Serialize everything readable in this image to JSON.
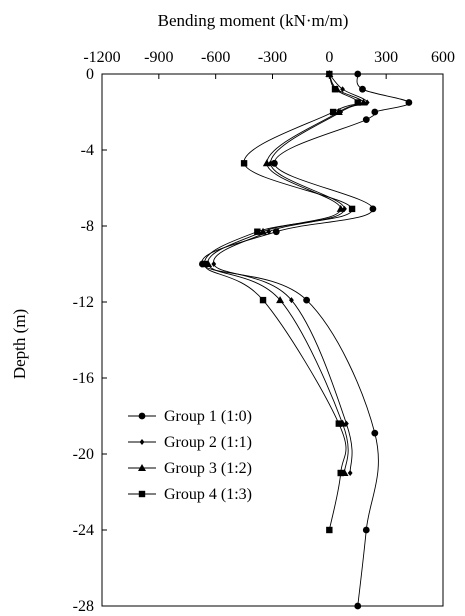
{
  "chart_data": {
    "type": "line",
    "title": "Bending moment (kN·m/m)",
    "xlabel": "Bending moment (kN·m/m)",
    "ylabel": "Depth (m)",
    "xlim": [
      -1200,
      600
    ],
    "ylim": [
      -28,
      0
    ],
    "x_ticks": [
      -1200,
      -900,
      -600,
      -300,
      0,
      300,
      600
    ],
    "y_ticks": [
      0,
      -4,
      -8,
      -12,
      -16,
      -20,
      -24,
      -28
    ],
    "x_tick_labels": [
      "-1200",
      "-900",
      "-600",
      "-300",
      "0",
      "300",
      "600"
    ],
    "y_tick_labels": [
      "0",
      "-4",
      "-8",
      "-12",
      "-16",
      "-20",
      "-24",
      "-28"
    ],
    "grid": false,
    "legend_position": "bottom-left",
    "series": [
      {
        "name": "Group 1 (1:0)",
        "marker": "circle",
        "x": [
          150,
          175,
          420,
          240,
          195,
          -290,
          230,
          -280,
          -670,
          -120,
          240,
          195,
          150
        ],
        "y": [
          0,
          -0.8,
          -1.5,
          -2,
          -2.4,
          -4.7,
          -7.1,
          -8.3,
          -10,
          -11.9,
          -18.9,
          -24,
          -28
        ]
      },
      {
        "name": "Group 2 (1:1)",
        "marker": "diamond",
        "x": [
          0,
          70,
          200,
          60,
          -310,
          80,
          -320,
          -610,
          -200,
          90,
          110
        ],
        "y": [
          0,
          -0.8,
          -1.5,
          -2,
          -4.7,
          -7.1,
          -8.3,
          -10,
          -11.9,
          -18.4,
          -21
        ]
      },
      {
        "name": "Group 3 (1:2)",
        "marker": "triangle",
        "x": [
          0,
          40,
          180,
          50,
          -330,
          60,
          -350,
          -640,
          -260,
          70,
          80
        ],
        "y": [
          0,
          -0.8,
          -1.5,
          -2,
          -4.7,
          -7.1,
          -8.3,
          -10,
          -11.9,
          -18.4,
          -21
        ]
      },
      {
        "name": "Group 4 (1:3)",
        "marker": "square",
        "x": [
          0,
          30,
          150,
          20,
          -450,
          120,
          -380,
          -660,
          -350,
          50,
          60,
          0
        ],
        "y": [
          0,
          -0.8,
          -1.5,
          -2,
          -4.7,
          -7.1,
          -8.3,
          -10,
          -11.9,
          -18.4,
          -21,
          -24
        ]
      }
    ]
  }
}
